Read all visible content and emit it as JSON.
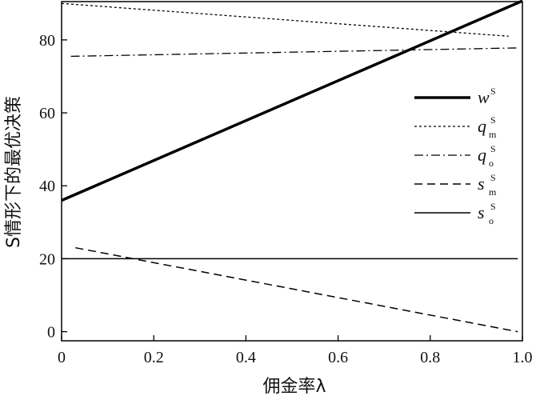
{
  "chart_data": {
    "type": "line",
    "xlabel": "佣金率λ",
    "ylabel": "S情形下的最优决策",
    "xlim": [
      0,
      1.0
    ],
    "ylim": [
      -2.5,
      90.5
    ],
    "x_ticks": [
      "0",
      "0.2",
      "0.4",
      "0.6",
      "0.8",
      "1.0"
    ],
    "y_ticks": [
      "0",
      "20",
      "40",
      "60",
      "80"
    ],
    "grid": false,
    "legend_position": "right",
    "series": [
      {
        "name": "w^S",
        "legend": {
          "main": "w",
          "sup": "S",
          "sub": ""
        },
        "style": "solid-thick",
        "x": [
          0.0,
          1.0
        ],
        "y": [
          36.0,
          90.7
        ]
      },
      {
        "name": "q_m^S",
        "legend": {
          "main": "q",
          "sup": "S",
          "sub": "m"
        },
        "style": "dotted",
        "x": [
          0.0,
          0.97
        ],
        "y": [
          90.0,
          81.0
        ]
      },
      {
        "name": "q_o^S",
        "legend": {
          "main": "q",
          "sup": "S",
          "sub": "o"
        },
        "style": "dashdot",
        "x": [
          0.02,
          0.99
        ],
        "y": [
          75.5,
          77.8
        ]
      },
      {
        "name": "s_m^S",
        "legend": {
          "main": "s",
          "sup": "S",
          "sub": "m"
        },
        "style": "dashed",
        "x": [
          0.03,
          0.99
        ],
        "y": [
          23.0,
          0.0
        ]
      },
      {
        "name": "s_o^S",
        "legend": {
          "main": "s",
          "sup": "S",
          "sub": "o"
        },
        "style": "solid-thin",
        "x": [
          0.0,
          0.99
        ],
        "y": [
          20.0,
          20.0
        ]
      }
    ]
  }
}
